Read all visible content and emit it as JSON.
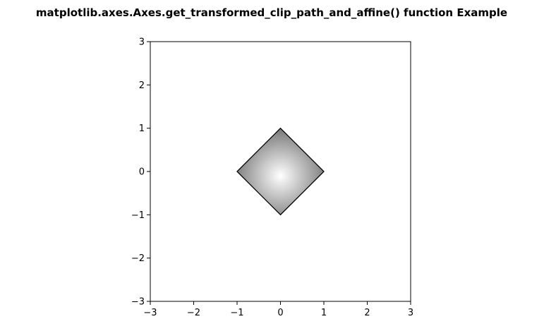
{
  "chart_data": {
    "type": "image",
    "title": "matplotlib.axes.Axes.get_transformed_clip_path_and_affine() function Example",
    "xlim": [
      -3,
      3
    ],
    "ylim": [
      -3,
      3
    ],
    "x_ticks": [
      -3,
      -2,
      -1,
      0,
      1,
      2,
      3
    ],
    "y_ticks": [
      -3,
      -2,
      -1,
      0,
      1,
      2,
      3
    ],
    "x_tick_labels": [
      "−3",
      "−2",
      "−1",
      "0",
      "1",
      "2",
      "3"
    ],
    "y_tick_labels": [
      "−3",
      "−2",
      "−1",
      "0",
      "1",
      "2",
      "3"
    ],
    "grid": false,
    "clip_path": {
      "shape": "diamond",
      "vertices": [
        [
          0,
          1
        ],
        [
          1,
          0
        ],
        [
          0,
          -1
        ],
        [
          -1,
          0
        ]
      ]
    },
    "image": {
      "colormap": "gray",
      "extent": [
        -1,
        1,
        -1,
        1
      ],
      "bright_center": [
        0,
        -0.1
      ],
      "dark_corner": [
        1,
        1
      ]
    },
    "colors": {
      "background": "#ffffff",
      "axes_edge": "#000000",
      "patch_edge": "#000000",
      "bright": "#ffffff",
      "dark": "#6f6f6f"
    }
  }
}
